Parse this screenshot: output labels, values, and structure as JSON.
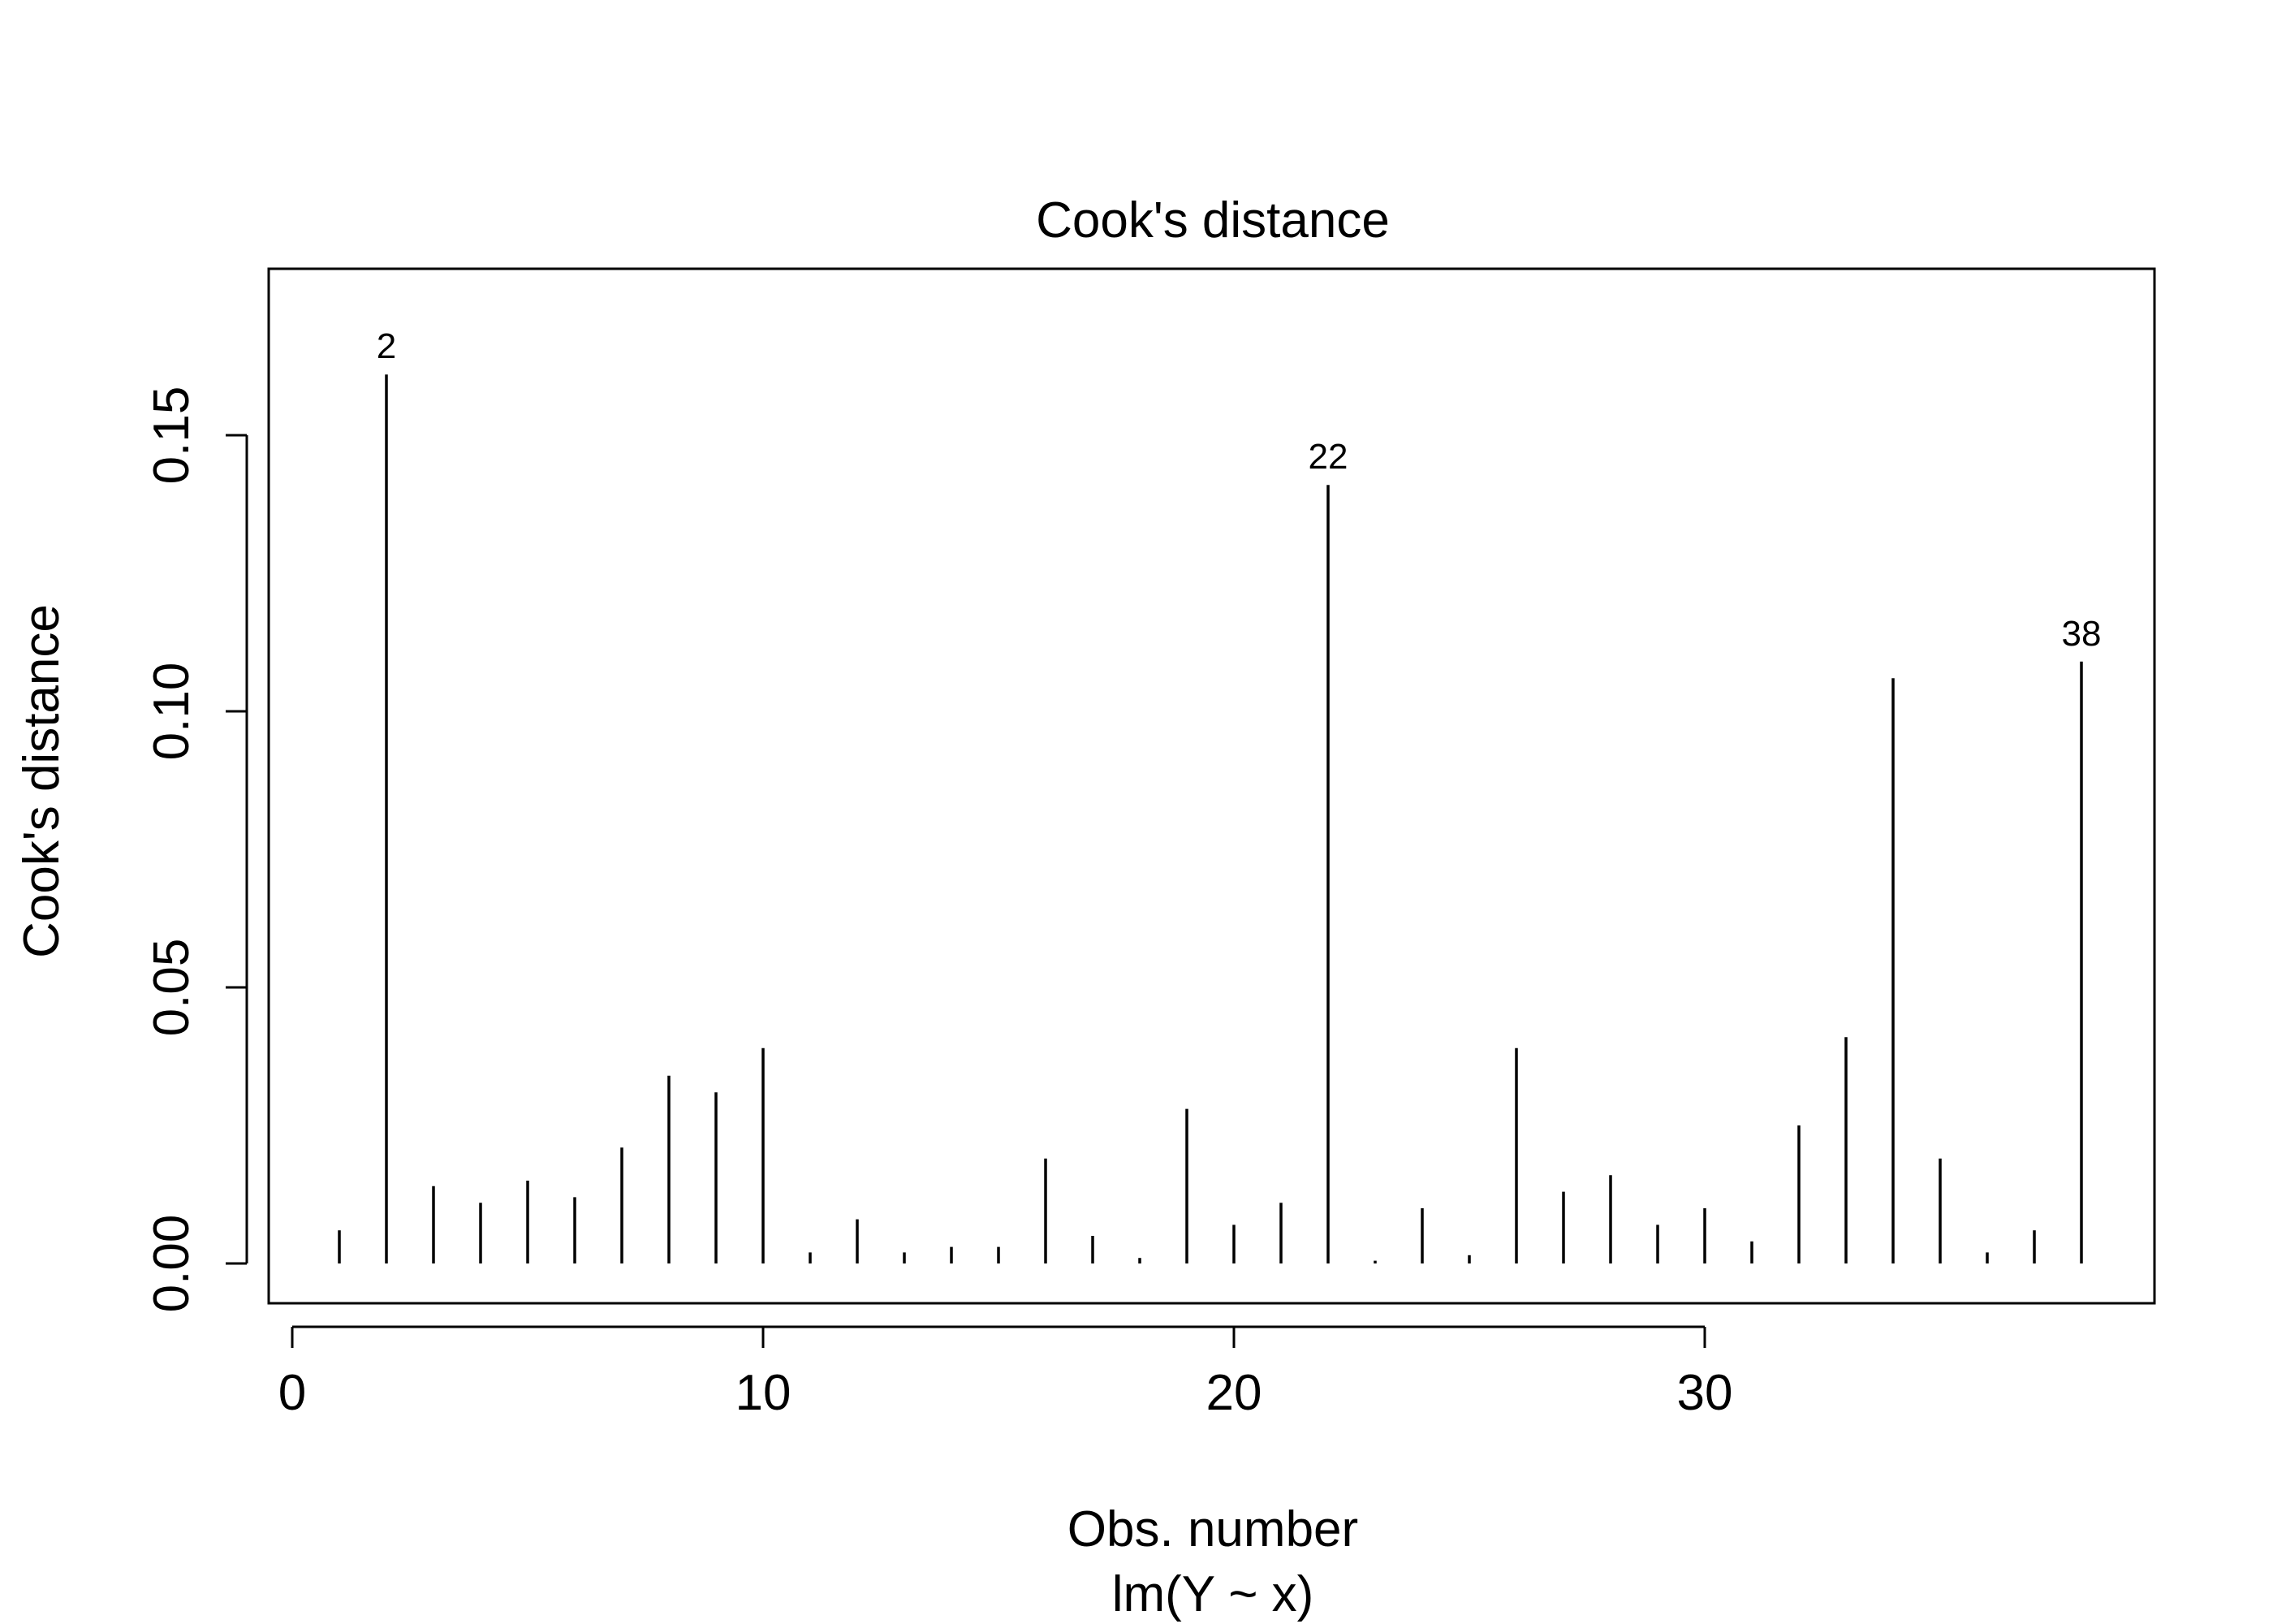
{
  "chart_data": {
    "type": "bar",
    "title": "Cook's distance",
    "xlabel": "Obs. number",
    "subtitle": "lm(Y ~ x)",
    "ylabel": "Cook's distance",
    "xlim": [
      0,
      39
    ],
    "ylim": [
      0,
      0.17
    ],
    "x_ticks": [
      0,
      10,
      20,
      30
    ],
    "x_tick_labels": [
      "0",
      "10",
      "20",
      "30"
    ],
    "y_ticks": [
      0.0,
      0.05,
      0.1,
      0.15
    ],
    "y_tick_labels": [
      "0.00",
      "0.05",
      "0.10",
      "0.15"
    ],
    "grid": false,
    "legend": "none",
    "x": [
      1,
      2,
      3,
      4,
      5,
      6,
      7,
      8,
      9,
      10,
      11,
      12,
      13,
      14,
      15,
      16,
      17,
      18,
      19,
      20,
      21,
      22,
      23,
      24,
      25,
      26,
      27,
      28,
      29,
      30,
      31,
      32,
      33,
      34,
      35,
      36,
      37,
      38
    ],
    "values": [
      0.006,
      0.161,
      0.014,
      0.011,
      0.015,
      0.012,
      0.021,
      0.034,
      0.031,
      0.039,
      0.002,
      0.008,
      0.002,
      0.003,
      0.003,
      0.019,
      0.005,
      0.001,
      0.028,
      0.007,
      0.011,
      0.141,
      0.0005,
      0.01,
      0.0015,
      0.039,
      0.013,
      0.016,
      0.007,
      0.01,
      0.004,
      0.025,
      0.041,
      0.106,
      0.019,
      0.002,
      0.006,
      0.109
    ],
    "annotations": [
      {
        "x": 2,
        "text": "2"
      },
      {
        "x": 22,
        "text": "22"
      },
      {
        "x": 38,
        "text": "38"
      }
    ]
  }
}
